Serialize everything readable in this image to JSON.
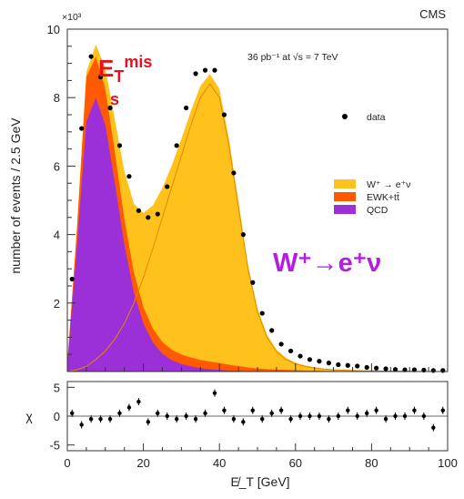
{
  "chart_data": [
    {
      "type": "area",
      "experiment": "CMS",
      "scale_note": "×10³",
      "luminosity": "36 pb⁻¹  at √s = 7 TeV",
      "ylabel": "number of events / 2.5 GeV",
      "xlim": [
        0,
        100
      ],
      "ylim": [
        0,
        10
      ],
      "yticks": [
        2,
        4,
        6,
        8,
        10
      ],
      "legend": {
        "placement": "right",
        "entries": [
          {
            "label": "data",
            "marker": "dot"
          },
          {
            "label": "W⁺ → e⁺ν",
            "color": "#ffc21c"
          },
          {
            "label": "EWK+tt̄",
            "color": "#ff5a00"
          },
          {
            "label": "QCD",
            "color": "#9b30d9"
          }
        ]
      },
      "x": [
        0,
        2.5,
        5,
        7.5,
        10,
        12.5,
        15,
        17.5,
        20,
        22.5,
        25,
        27.5,
        30,
        32.5,
        35,
        37.5,
        40,
        42.5,
        45,
        47.5,
        50,
        52.5,
        55,
        57.5,
        60,
        62.5,
        65,
        67.5,
        70,
        72.5,
        75,
        77.5,
        80,
        82.5,
        85,
        87.5,
        90,
        92.5,
        95,
        97.5,
        100
      ],
      "series": [
        {
          "name": "QCD",
          "color": "#9b30d9",
          "values": [
            0.2,
            3.6,
            7.3,
            8.0,
            7.2,
            5.5,
            3.7,
            2.3,
            1.4,
            0.85,
            0.52,
            0.33,
            0.22,
            0.15,
            0.1,
            0.07,
            0.05,
            0.03,
            0.02,
            0.01,
            0,
            0,
            0,
            0,
            0,
            0,
            0,
            0,
            0,
            0,
            0,
            0,
            0,
            0,
            0,
            0,
            0,
            0,
            0,
            0,
            0
          ]
        },
        {
          "name": "EWK+tt̄",
          "color": "#ff5a00",
          "values": [
            0.04,
            0.5,
            1.3,
            1.2,
            1.05,
            0.9,
            0.75,
            0.6,
            0.48,
            0.4,
            0.34,
            0.3,
            0.28,
            0.26,
            0.24,
            0.22,
            0.2,
            0.17,
            0.14,
            0.11,
            0.09,
            0.07,
            0.06,
            0.05,
            0.04,
            0.03,
            0.025,
            0.02,
            0.015,
            0.01,
            0.01,
            0.01,
            0,
            0,
            0,
            0,
            0,
            0,
            0,
            0,
            0
          ]
        },
        {
          "name": "W⁺ → e⁺ν",
          "color": "#ffc21c",
          "values": [
            0,
            0.05,
            0.15,
            0.35,
            0.6,
            0.95,
            1.4,
            2.0,
            2.75,
            3.6,
            4.5,
            5.4,
            6.3,
            7.2,
            8.0,
            8.4,
            8.0,
            6.6,
            4.8,
            3.0,
            1.75,
            1.0,
            0.58,
            0.35,
            0.22,
            0.15,
            0.1,
            0.07,
            0.05,
            0.04,
            0.03,
            0.02,
            0.02,
            0.015,
            0.01,
            0.01,
            0.01,
            0,
            0,
            0,
            0
          ]
        }
      ],
      "data_points": {
        "x": [
          1.25,
          3.75,
          6.25,
          8.75,
          11.25,
          13.75,
          16.25,
          18.75,
          21.25,
          23.75,
          26.25,
          28.75,
          31.25,
          33.75,
          36.25,
          38.75,
          41.25,
          43.75,
          46.25,
          48.75,
          51.25,
          53.75,
          56.25,
          58.75,
          61.25,
          63.75,
          66.25,
          68.75,
          71.25,
          73.75,
          76.25,
          78.75,
          81.25,
          83.75,
          86.25,
          88.75,
          91.25,
          93.75,
          96.25,
          98.75
        ],
        "y": [
          2.7,
          7.1,
          9.2,
          8.6,
          7.7,
          6.6,
          5.7,
          4.7,
          4.5,
          4.6,
          5.4,
          6.6,
          7.7,
          8.7,
          8.8,
          8.8,
          7.5,
          5.8,
          4.0,
          2.6,
          1.7,
          1.2,
          0.8,
          0.6,
          0.45,
          0.35,
          0.3,
          0.25,
          0.2,
          0.18,
          0.16,
          0.12,
          0.1,
          0.08,
          0.06,
          0.05,
          0.05,
          0.04,
          0.03,
          0.03
        ]
      },
      "annotations": [
        "E_T^miss",
        "W⁺→e⁺ν"
      ]
    },
    {
      "type": "scatter",
      "ylabel": "χ",
      "xlabel": "E̸_T  [GeV]",
      "xlim": [
        0,
        100
      ],
      "ylim": [
        -6,
        6
      ],
      "yticks": [
        -5,
        0,
        5
      ],
      "xticks": [
        0,
        20,
        40,
        60,
        80,
        100
      ],
      "x": [
        1.25,
        3.75,
        6.25,
        8.75,
        11.25,
        13.75,
        16.25,
        18.75,
        21.25,
        23.75,
        26.25,
        28.75,
        31.25,
        33.75,
        36.25,
        38.75,
        41.25,
        43.75,
        46.25,
        48.75,
        51.25,
        53.75,
        56.25,
        58.75,
        61.25,
        63.75,
        66.25,
        68.75,
        71.25,
        73.75,
        76.25,
        78.75,
        81.25,
        83.75,
        86.25,
        88.75,
        91.25,
        93.75,
        96.25,
        98.75
      ],
      "values": [
        0.5,
        -1.5,
        -0.5,
        -0.5,
        -0.5,
        0.5,
        1.5,
        2.5,
        -1.0,
        0.5,
        0,
        -0.5,
        0,
        -0.5,
        0.5,
        4.0,
        1.0,
        -0.5,
        -1.0,
        1.0,
        -0.5,
        0.5,
        1.0,
        -0.5,
        0,
        0,
        0,
        -0.5,
        0,
        1.0,
        0,
        0.5,
        1.0,
        -0.5,
        0,
        0,
        1.0,
        0,
        -2.0,
        1.0
      ]
    }
  ],
  "annotations": {
    "met_base": "E",
    "met_sub": "T",
    "met_sup": "mis",
    "met_sub2": "s",
    "process": "W⁺→e⁺ν"
  }
}
